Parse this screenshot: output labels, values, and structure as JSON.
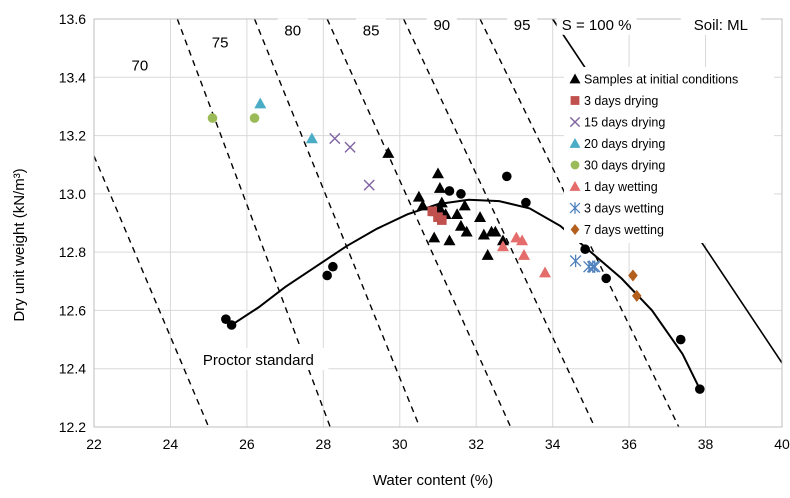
{
  "chart_data": {
    "type": "scatter",
    "title": "",
    "xlabel": "Water content (%)",
    "ylabel": "Dry unit weight (kN/m³)",
    "xlim": [
      22,
      40
    ],
    "ylim": [
      12.2,
      13.6
    ],
    "x_ticks": [
      "22",
      "24",
      "26",
      "28",
      "30",
      "32",
      "34",
      "36",
      "38",
      "40"
    ],
    "y_ticks": [
      "12.2",
      "12.4",
      "12.6",
      "12.8",
      "13.0",
      "13.2",
      "13.4",
      "13.6"
    ],
    "grid": true,
    "legend_position": "right",
    "soil_label": "Soil: ML",
    "saturation_lines": [
      {
        "label": "70",
        "points": [
          [
            22.0,
            13.13
          ],
          [
            25.0,
            12.2
          ]
        ]
      },
      {
        "label": "75",
        "points": [
          [
            24.18,
            13.6
          ],
          [
            28.18,
            12.2
          ]
        ]
      },
      {
        "label": "80",
        "points": [
          [
            26.2,
            13.6
          ],
          [
            30.52,
            12.2
          ]
        ]
      },
      {
        "label": "85",
        "points": [
          [
            28.1,
            13.6
          ],
          [
            32.9,
            12.2
          ]
        ]
      },
      {
        "label": "90",
        "points": [
          [
            30.1,
            13.6
          ],
          [
            35.1,
            12.2
          ]
        ]
      },
      {
        "label": "95",
        "points": [
          [
            32.1,
            13.6
          ],
          [
            37.3,
            12.2
          ]
        ]
      },
      {
        "label": "S = 100 %",
        "points": [
          [
            34.0,
            13.6
          ],
          [
            40.0,
            12.42
          ]
        ]
      }
    ],
    "proctor_curve": {
      "label": "Proctor standard",
      "x": [
        25.6,
        26.3,
        27.0,
        27.8,
        28.6,
        29.4,
        30.2,
        31.0,
        31.8,
        32.6,
        33.4,
        34.2,
        35.0,
        35.8,
        36.6,
        37.4,
        37.85
      ],
      "y": [
        12.55,
        12.61,
        12.68,
        12.75,
        12.82,
        12.88,
        12.93,
        12.965,
        12.98,
        12.975,
        12.95,
        12.89,
        12.8,
        12.71,
        12.6,
        12.45,
        12.33
      ]
    },
    "series": [
      {
        "name": "Samples at initial conditions",
        "marker": "triangle",
        "color": "#000000",
        "x": [
          29.7,
          30.5,
          30.6,
          30.9,
          31.0,
          31.05,
          31.1,
          31.2,
          31.3,
          31.5,
          31.6,
          31.7,
          31.75,
          32.1,
          32.2,
          32.3,
          32.4,
          32.5,
          32.7,
          30.95,
          31.05
        ],
        "y": [
          13.14,
          12.99,
          12.96,
          12.85,
          13.07,
          13.02,
          12.97,
          12.93,
          12.84,
          12.93,
          12.89,
          12.96,
          12.87,
          12.92,
          12.86,
          12.79,
          12.87,
          12.87,
          12.84,
          12.94,
          12.95
        ]
      },
      {
        "name": "3 days drying",
        "marker": "square",
        "color": "#C0504D",
        "x": [
          30.85,
          31.0,
          31.1
        ],
        "y": [
          12.94,
          12.92,
          12.91
        ]
      },
      {
        "name": "15 days drying",
        "marker": "x",
        "color": "#8064A2",
        "x": [
          28.3,
          28.7,
          29.2
        ],
        "y": [
          13.19,
          13.16,
          13.03
        ]
      },
      {
        "name": "20 days drying",
        "marker": "triangle",
        "color": "#4BACC6",
        "x": [
          26.35,
          27.7
        ],
        "y": [
          13.31,
          13.19
        ]
      },
      {
        "name": "30 days drying",
        "marker": "circle",
        "color": "#9BBB59",
        "x": [
          25.1,
          26.2
        ],
        "y": [
          13.26,
          13.26
        ]
      },
      {
        "name": "1 day wetting",
        "marker": "triangle",
        "color": "#E46C6A",
        "x": [
          32.7,
          33.05,
          33.2,
          33.25,
          33.8
        ],
        "y": [
          12.82,
          12.85,
          12.84,
          12.79,
          12.73
        ]
      },
      {
        "name": "3 days wetting",
        "marker": "asterisk",
        "color": "#4F81BD",
        "x": [
          34.6,
          34.95,
          35.05,
          35.1
        ],
        "y": [
          12.77,
          12.75,
          12.75,
          12.75
        ]
      },
      {
        "name": "7 days wetting",
        "marker": "diamond",
        "color": "#B35F1E",
        "x": [
          36.1,
          36.2
        ],
        "y": [
          12.72,
          12.65
        ]
      },
      {
        "name": "",
        "marker": "circle",
        "color": "#000000",
        "x": [
          25.45,
          25.6,
          28.1,
          28.25,
          31.3,
          31.6,
          32.8,
          33.3,
          34.85,
          35.4,
          37.35,
          37.85
        ],
        "y": [
          12.57,
          12.55,
          12.72,
          12.75,
          13.01,
          13.0,
          13.06,
          12.97,
          12.81,
          12.71,
          12.5,
          12.33
        ]
      }
    ]
  }
}
